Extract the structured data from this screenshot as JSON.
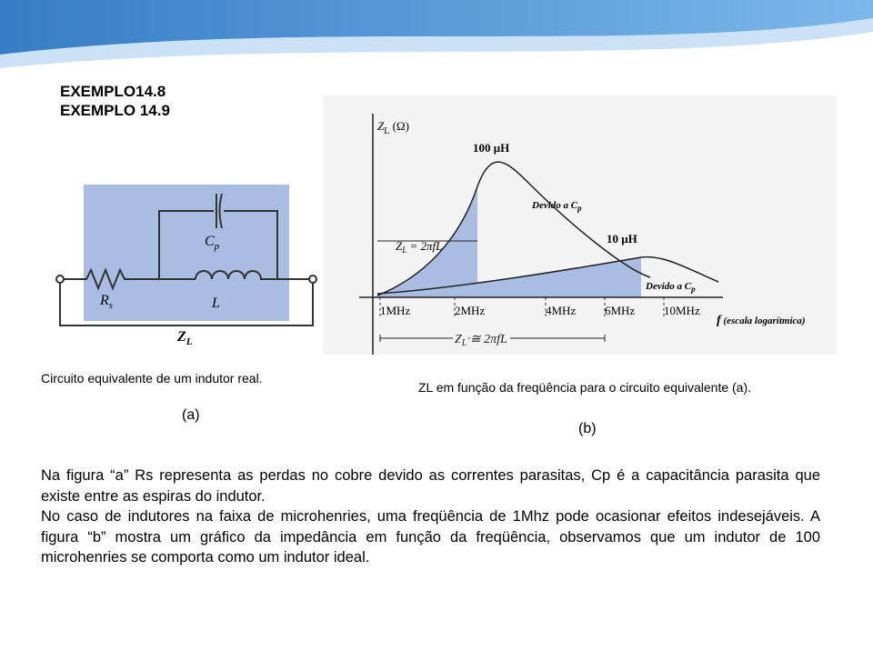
{
  "header": {
    "lines": [
      "EXEMPLO14.8",
      "EXEMPLO 14.9"
    ]
  },
  "figure_a": {
    "labels": {
      "cp": {
        "base": "C",
        "sub": "p"
      },
      "rs": {
        "base": "R",
        "sub": "s"
      },
      "l": "L",
      "zl": {
        "base": "Z",
        "sub": "L"
      }
    },
    "caption": "Circuito equivalente de um indutor real.",
    "tag": "(a)"
  },
  "figure_b": {
    "axis_y": {
      "base": "Z",
      "sub": "L",
      "rest": " (Ω)"
    },
    "curve_100": "100 μH",
    "curve_10": "10 μH",
    "note_1": {
      "base": "Devido a C",
      "sub": "p"
    },
    "note_2": {
      "base": "Devido a C",
      "sub": "p"
    },
    "formula_ideal": {
      "base": "Z",
      "sub": "L",
      "rest": " = 2πfL"
    },
    "ticks": [
      "1MHz",
      "2MHz",
      "4MHz",
      "6MHz",
      "10MHz"
    ],
    "axis_x": {
      "base": "f",
      "rest": " (escala logarítmica)"
    },
    "formula_range": {
      "base": "Z",
      "sub": "L",
      "rest": " ≅ 2πfL"
    },
    "caption": "ZL em função da freqüência para o circuito equivalente (a).",
    "tag": "(b)"
  },
  "body": {
    "paragraphs": [
      "Na figura “a” Rs representa as perdas no cobre devido as correntes parasitas, Cp é a capacitância parasita que existe entre as espiras do indutor.",
      "No caso de indutores na faixa de microhenries, uma freqüência de 1Mhz pode ocasionar efeitos indesejáveis. A figura “b” mostra um gráfico da impedância em função da freqüência, observamos que um indutor de 100 microhenries se comporta como um indutor ideal."
    ]
  }
}
